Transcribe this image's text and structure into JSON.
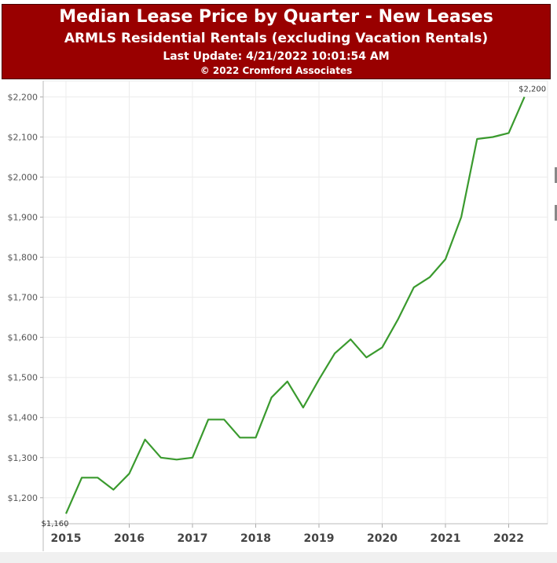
{
  "header": {
    "title": "Median Lease Price by Quarter - New Leases",
    "subtitle": "ARMLS Residential Rentals (excluding Vacation Rentals)",
    "last_update": "Last Update: 4/21/2022 10:01:54 AM",
    "copyright": "© 2022 Cromford Associates",
    "background_color": "#990000"
  },
  "chart_data": {
    "type": "line",
    "title": "Median Lease Price by Quarter - New Leases",
    "subtitle": "ARMLS Residential Rentals (excluding Vacation Rentals)",
    "xlabel": "",
    "ylabel": "",
    "x_ticks": [
      "2015",
      "2016",
      "2017",
      "2018",
      "2019",
      "2020",
      "2021",
      "2022"
    ],
    "y_ticks": [
      "$1,200",
      "$1,300",
      "$1,400",
      "$1,500",
      "$1,600",
      "$1,700",
      "$1,800",
      "$1,900",
      "$2,000",
      "$2,100",
      "$2,200"
    ],
    "y_tick_values": [
      1200,
      1300,
      1400,
      1500,
      1600,
      1700,
      1800,
      1900,
      2000,
      2100,
      2200
    ],
    "ylim": [
      1135,
      2240
    ],
    "grid": true,
    "line_color": "#3a9a2e",
    "series": [
      {
        "x": [
          "2015-Q1",
          "2015-Q2",
          "2015-Q3",
          "2015-Q4",
          "2016-Q1",
          "2016-Q2",
          "2016-Q3",
          "2016-Q4",
          "2017-Q1",
          "2017-Q2",
          "2017-Q3",
          "2017-Q4",
          "2018-Q1",
          "2018-Q2",
          "2018-Q3",
          "2018-Q4",
          "2019-Q1",
          "2019-Q2",
          "2019-Q3",
          "2019-Q4",
          "2020-Q1",
          "2020-Q2",
          "2020-Q3",
          "2020-Q4",
          "2021-Q1",
          "2021-Q2",
          "2021-Q3",
          "2021-Q4",
          "2022-Q1",
          "2022-Q2"
        ],
        "values": [
          1160,
          1250,
          1250,
          1220,
          1260,
          1345,
          1300,
          1295,
          1300,
          1395,
          1395,
          1350,
          1350,
          1450,
          1490,
          1425,
          1495,
          1560,
          1595,
          1550,
          1575,
          1645,
          1725,
          1750,
          1795,
          1900,
          2095,
          2100,
          2110,
          2200
        ]
      }
    ],
    "data_labels": [
      {
        "index": 0,
        "text": "$1,160"
      },
      {
        "index": 29,
        "text": "$2,200"
      }
    ]
  }
}
